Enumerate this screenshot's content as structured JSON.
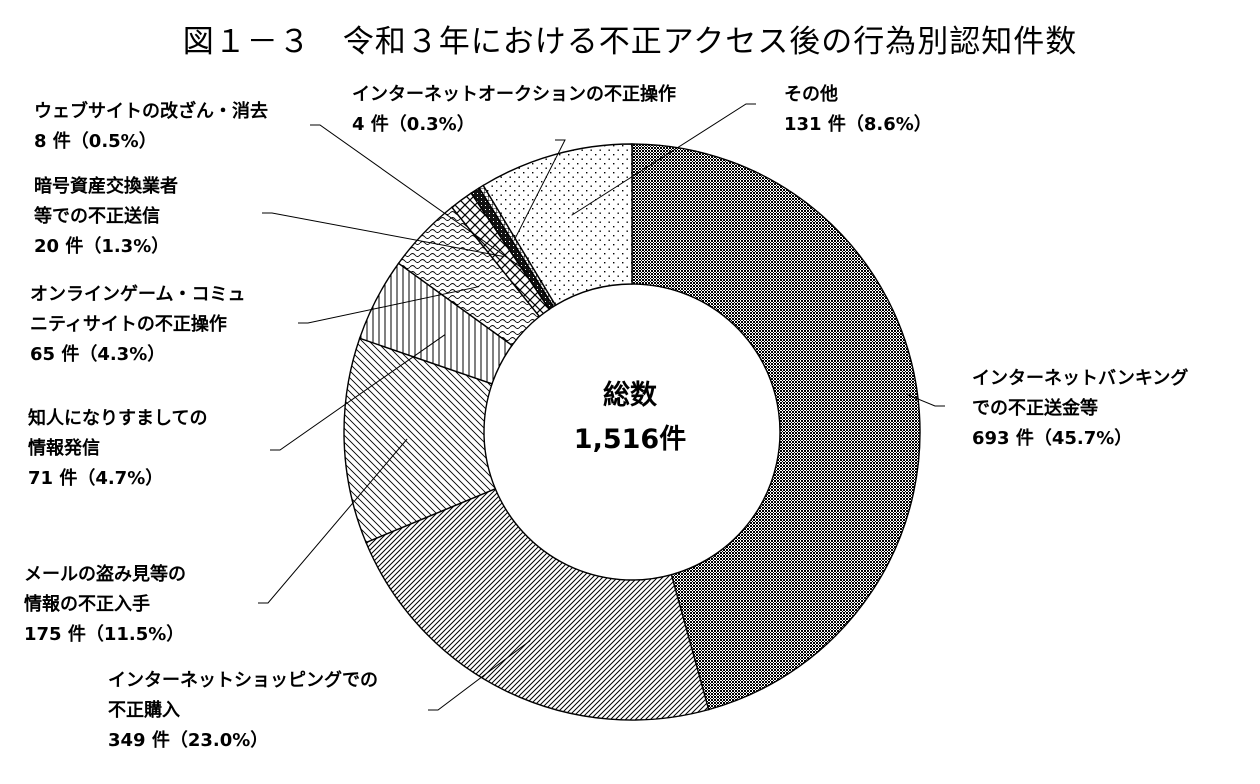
{
  "title": "図１－３　令和３年における不正アクセス後の行為別認知件数",
  "center": {
    "label": "総数",
    "total": "1,516件"
  },
  "chart_data": {
    "type": "pie",
    "donut": true,
    "title": "図１－３　令和３年における不正アクセス後の行為別認知件数",
    "total": 1516,
    "slices": [
      {
        "label_lines": [
          "インターネットバンキング",
          "での不正送金等"
        ],
        "value_text": "693 件（45.7%）",
        "value": 693,
        "percent": 45.7,
        "pattern": "dense-dots"
      },
      {
        "label_lines": [
          "インターネットショッピングでの",
          "不正購入"
        ],
        "value_text": "349 件（23.0%）",
        "value": 349,
        "percent": 23.0,
        "pattern": "diagonal-fine"
      },
      {
        "label_lines": [
          "メールの盗み見等の",
          "情報の不正入手"
        ],
        "value_text": "175 件（11.5%）",
        "value": 175,
        "percent": 11.5,
        "pattern": "diagonal-wide"
      },
      {
        "label_lines": [
          "知人になりすましての",
          "情報発信"
        ],
        "value_text": "71 件（4.7%）",
        "value": 71,
        "percent": 4.7,
        "pattern": "vertical"
      },
      {
        "label_lines": [
          "オンラインゲーム・コミュ",
          "ニティサイトの不正操作"
        ],
        "value_text": "65 件（4.3%）",
        "value": 65,
        "percent": 4.3,
        "pattern": "wave"
      },
      {
        "label_lines": [
          "暗号資産交換業者",
          "等での不正送信"
        ],
        "value_text": "20 件（1.3%）",
        "value": 20,
        "percent": 1.3,
        "pattern": "crosshatch"
      },
      {
        "label_lines": [
          "ウェブサイトの改ざん・消去"
        ],
        "value_text": "8 件（0.5%）",
        "value": 8,
        "percent": 0.5,
        "pattern": "black"
      },
      {
        "label_lines": [
          "インターネットオークションの不正操作"
        ],
        "value_text": "4 件（0.3%）",
        "value": 4,
        "percent": 0.3,
        "pattern": "grid"
      },
      {
        "label_lines": [
          "その他"
        ],
        "value_text": "131 件（8.6%）",
        "value": 131,
        "percent": 8.6,
        "pattern": "sparse-dots"
      }
    ]
  }
}
